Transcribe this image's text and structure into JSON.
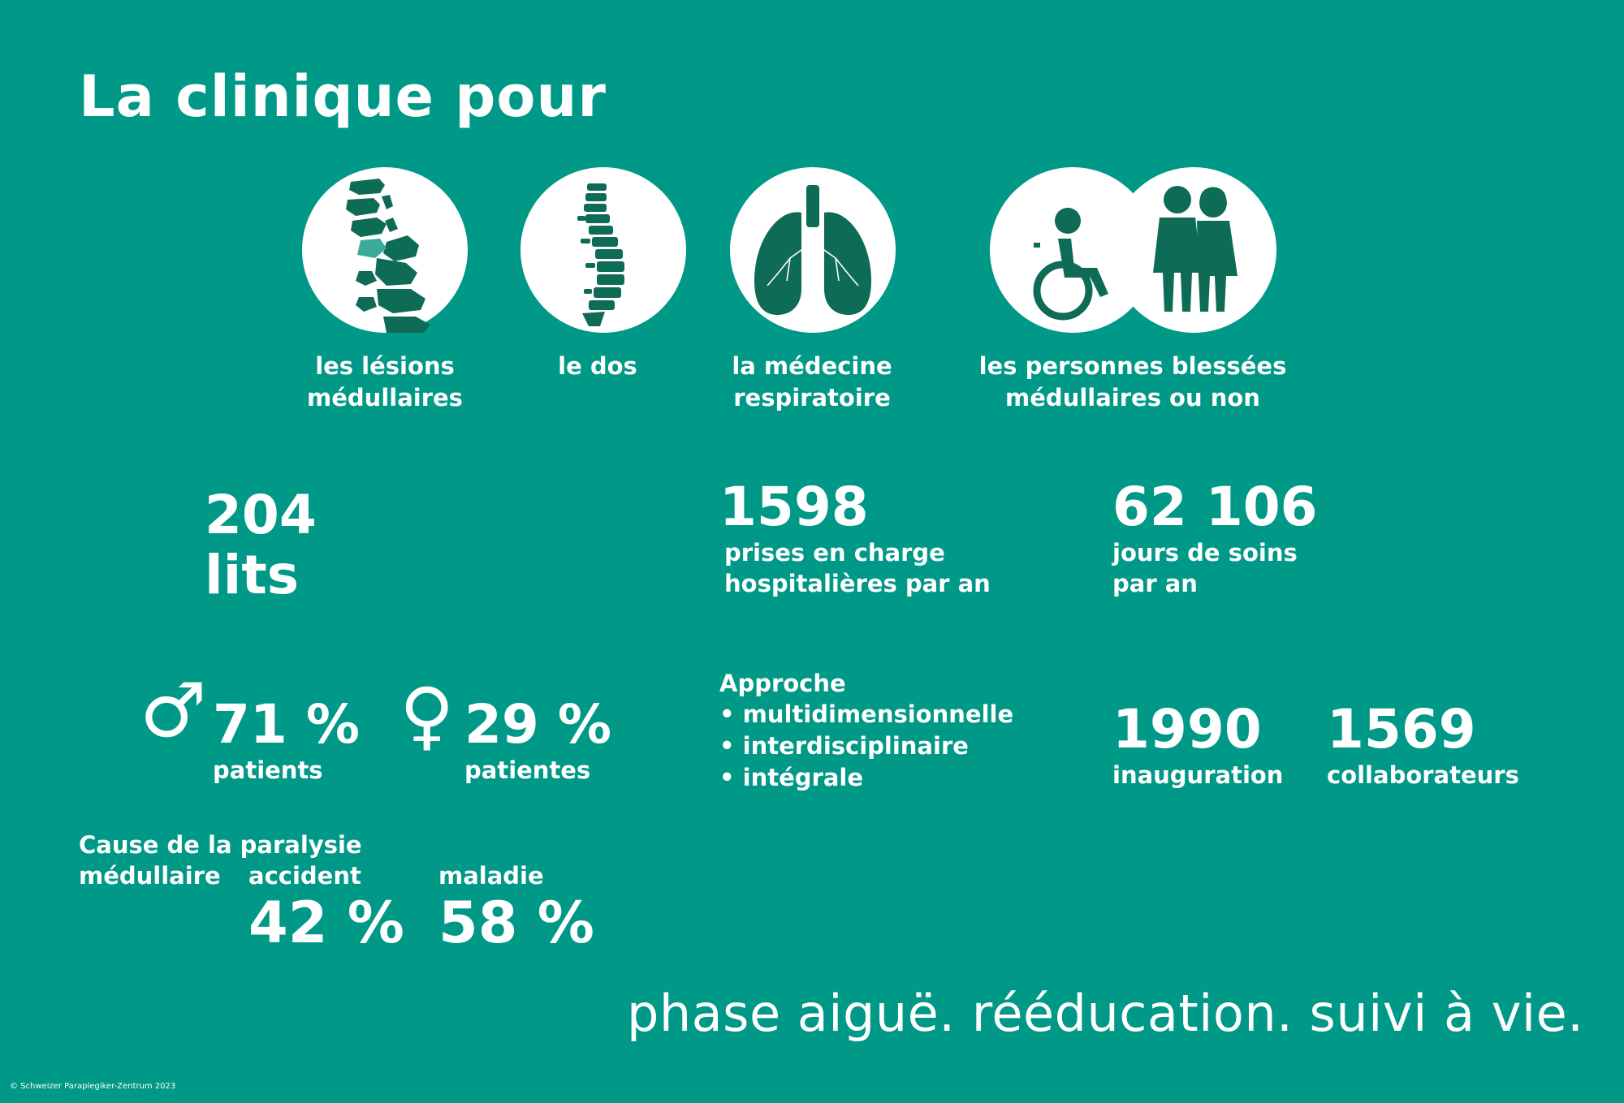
{
  "title": "La clinique pour",
  "focus_areas": [
    {
      "icon": "vertebrae-icon",
      "label_line1": "les lésions",
      "label_line2": "médullaires"
    },
    {
      "icon": "spine-icon",
      "label_line1": "le dos",
      "label_line2": ""
    },
    {
      "icon": "lungs-icon",
      "label_line1": "la médecine",
      "label_line2": "respiratoire"
    },
    {
      "icon": "people-icon",
      "label_line1": "les personnes blessées",
      "label_line2": "médullaires ou non"
    }
  ],
  "beds": {
    "value": "204",
    "unit": "lits"
  },
  "admissions": {
    "value": "1598",
    "line1": "prises en charge",
    "line2": "hospitalières par an"
  },
  "care_days": {
    "value": "62 106",
    "line1": "jours de soins",
    "line2": "par an"
  },
  "male": {
    "symbol": "♂",
    "percent": "71 %",
    "label": "patients"
  },
  "female": {
    "symbol": "♀",
    "percent": "29 %",
    "label": "patientes"
  },
  "approach": {
    "heading": "Approche",
    "items": [
      "multidimensionnelle",
      "interdisciplinaire",
      "intégrale"
    ]
  },
  "founded": {
    "value": "1990",
    "label": "inauguration"
  },
  "staff": {
    "value": "1569",
    "label": "collaborateurs"
  },
  "cause": {
    "heading_line1": "Cause de la paralysie",
    "heading_line2": "médullaire",
    "accident_label": "accident",
    "accident_value": "42 %",
    "illness_label": "maladie",
    "illness_value": "58 %"
  },
  "tagline": "phase aiguë. rééducation. suivi à vie.",
  "copyright": "© Schweizer Paraplegiker-Zentrum 2023",
  "colors": {
    "background": "#009887",
    "icon": "#0e6b55",
    "circle": "#ffffff"
  }
}
